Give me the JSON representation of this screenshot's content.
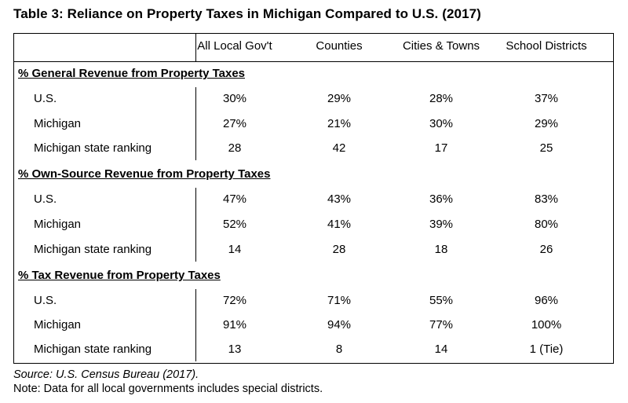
{
  "title": "Table 3: Reliance on Property Taxes in Michigan Compared to U.S. (2017)",
  "columns": [
    "All Local Gov't",
    "Counties",
    "Cities & Towns",
    "School Districts"
  ],
  "sections": [
    {
      "heading": "% General Revenue from Property Taxes",
      "rows": [
        {
          "label": "U.S.",
          "values": [
            "30%",
            "29%",
            "28%",
            "37%"
          ]
        },
        {
          "label": "Michigan",
          "values": [
            "27%",
            "21%",
            "30%",
            "29%"
          ]
        },
        {
          "label": "Michigan state ranking",
          "values": [
            "28",
            "42",
            "17",
            "25"
          ]
        }
      ]
    },
    {
      "heading": "% Own-Source Revenue from Property Taxes",
      "rows": [
        {
          "label": "U.S.",
          "values": [
            "47%",
            "43%",
            "36%",
            "83%"
          ]
        },
        {
          "label": "Michigan",
          "values": [
            "52%",
            "41%",
            "39%",
            "80%"
          ]
        },
        {
          "label": "Michigan state ranking",
          "values": [
            "14",
            "28",
            "18",
            "26"
          ]
        }
      ]
    },
    {
      "heading": "% Tax Revenue from Property Taxes",
      "rows": [
        {
          "label": "U.S.",
          "values": [
            "72%",
            "71%",
            "55%",
            "96%"
          ]
        },
        {
          "label": "Michigan",
          "values": [
            "91%",
            "94%",
            "77%",
            "100%"
          ]
        },
        {
          "label": "Michigan state ranking",
          "values": [
            "13",
            "8",
            "14",
            "1 (Tie)"
          ]
        }
      ]
    }
  ],
  "source": "Source: U.S. Census Bureau (2017).",
  "note": "Note: Data for all local governments includes special districts."
}
